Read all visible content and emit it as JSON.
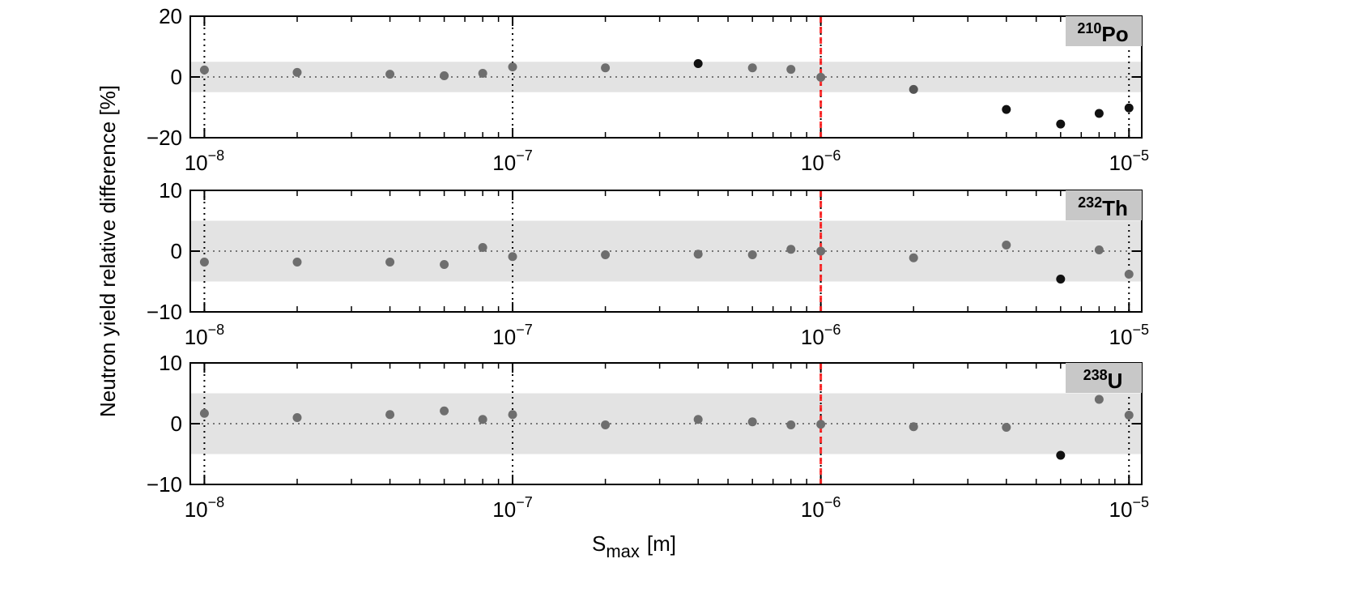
{
  "chart_data": {
    "type": "scatter",
    "ylabel": "Neutron yield relative difference [%]",
    "xlabel": {
      "main": "S",
      "sub": "max",
      "unit": "[m]"
    },
    "xscale": "log",
    "xlim": [
      9e-09,
      1.1e-05
    ],
    "xticks": [
      {
        "value": 1e-08,
        "label": "10",
        "exponent": "−8"
      },
      {
        "value": 1e-07,
        "label": "10",
        "exponent": "−7"
      },
      {
        "value": 1e-06,
        "label": "10",
        "exponent": "−6"
      },
      {
        "value": 1e-05,
        "label": "10",
        "exponent": "−5"
      }
    ],
    "minor_xticks": [
      2e-08,
      3e-08,
      4e-08,
      5e-08,
      6e-08,
      7e-08,
      8e-08,
      9e-08,
      2e-07,
      3e-07,
      4e-07,
      5e-07,
      6e-07,
      7e-07,
      8e-07,
      9e-07,
      2e-06,
      3e-06,
      4e-06,
      5e-06,
      6e-06,
      7e-06,
      8e-06,
      9e-06
    ],
    "xgrid": true,
    "band": [
      -5,
      5
    ],
    "band_color": "#e3e3e3",
    "hline": 0,
    "vline": 1e-06,
    "vline_color": "#ff1a1a",
    "label_box_color": "#c8c8c8",
    "x": [
      1e-08,
      2e-08,
      4e-08,
      6e-08,
      8e-08,
      1e-07,
      2e-07,
      4e-07,
      6e-07,
      8e-07,
      1e-06,
      2e-06,
      4e-06,
      6e-06,
      8e-06,
      1e-05
    ],
    "panels": [
      {
        "label_sup": "210",
        "label": "Po",
        "ylim": [
          -20,
          20
        ],
        "yticks": [
          {
            "value": -20,
            "label": "−20"
          },
          0,
          20
        ],
        "y": [
          2.3,
          1.5,
          0.9,
          0.4,
          1.2,
          3.3,
          3.0,
          4.4,
          3.0,
          2.5,
          -0.1,
          -4.1,
          -10.7,
          -15.5,
          -12.0,
          -10.2
        ],
        "colors": [
          "#6e6e6e",
          "#6e6e6e",
          "#6e6e6e",
          "#6e6e6e",
          "#6e6e6e",
          "#6e6e6e",
          "#6e6e6e",
          "#111111",
          "#6e6e6e",
          "#6e6e6e",
          "#6e6e6e",
          "#555555",
          "#111111",
          "#111111",
          "#111111",
          "#111111"
        ]
      },
      {
        "label_sup": "232",
        "label": "Th",
        "ylim": [
          -10,
          10
        ],
        "yticks": [
          {
            "value": -10,
            "label": "−10"
          },
          0,
          10
        ],
        "y": [
          -1.8,
          -1.8,
          -1.8,
          -2.2,
          0.6,
          -0.9,
          -0.6,
          -0.5,
          -0.6,
          0.3,
          0.0,
          -1.1,
          1.0,
          -4.6,
          0.2,
          -3.8
        ],
        "colors": [
          "#6e6e6e",
          "#6e6e6e",
          "#6e6e6e",
          "#6e6e6e",
          "#6e6e6e",
          "#6e6e6e",
          "#6e6e6e",
          "#6e6e6e",
          "#6e6e6e",
          "#6e6e6e",
          "#6e6e6e",
          "#6e6e6e",
          "#6e6e6e",
          "#111111",
          "#6e6e6e",
          "#6e6e6e"
        ]
      },
      {
        "label_sup": "238",
        "label": "U",
        "ylim": [
          -10,
          10
        ],
        "yticks": [
          {
            "value": -10,
            "label": "−10"
          },
          0,
          10
        ],
        "y": [
          1.7,
          1.0,
          1.5,
          2.1,
          0.7,
          1.5,
          -0.2,
          0.7,
          0.3,
          -0.2,
          -0.1,
          -0.5,
          -0.6,
          -5.2,
          4.0,
          1.4
        ],
        "colors": [
          "#6e6e6e",
          "#6e6e6e",
          "#6e6e6e",
          "#6e6e6e",
          "#6e6e6e",
          "#6e6e6e",
          "#6e6e6e",
          "#6e6e6e",
          "#6e6e6e",
          "#6e6e6e",
          "#6e6e6e",
          "#6e6e6e",
          "#6e6e6e",
          "#111111",
          "#6e6e6e",
          "#6e6e6e"
        ]
      }
    ]
  }
}
